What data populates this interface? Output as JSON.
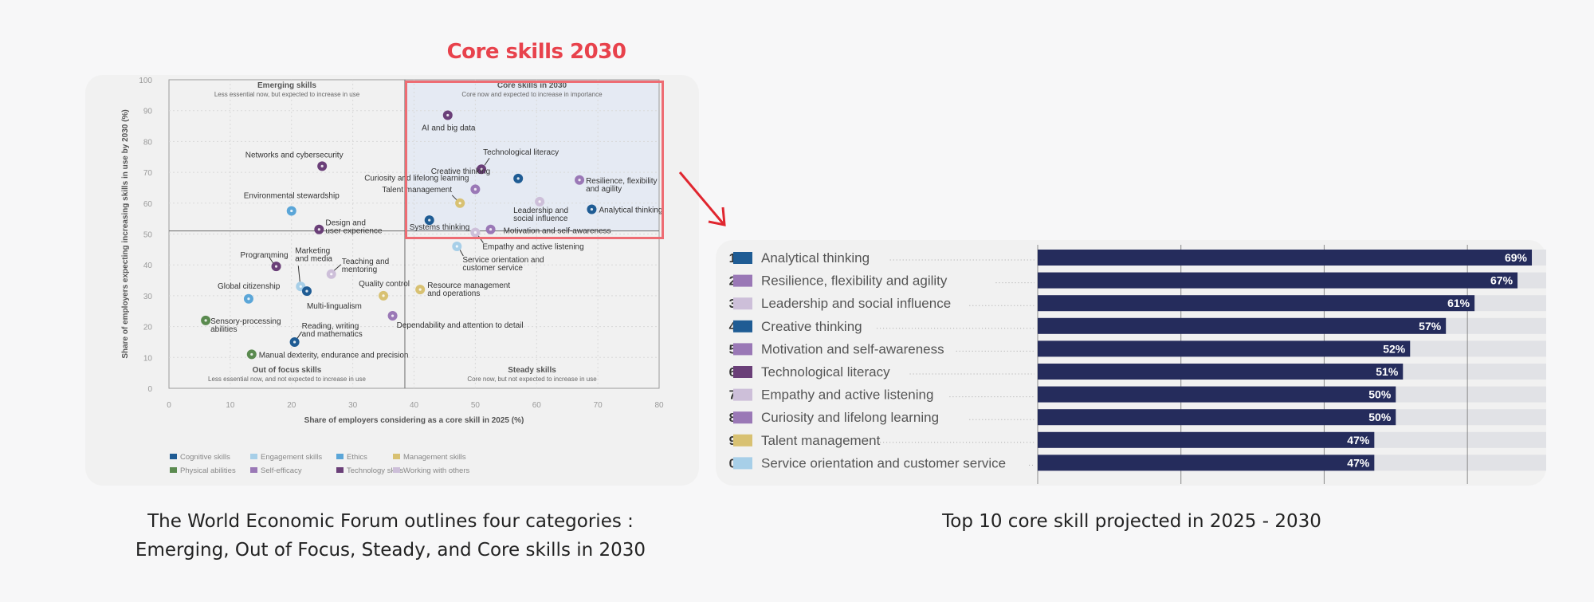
{
  "highlight_title": "Core skills 2030",
  "captions": {
    "left_line1": "The World Economic Forum outlines four categories :",
    "left_line2": "Emerging, Out of Focus, Steady, and Core skills in 2030",
    "right": "Top 10 core skill projected in 2025 - 2030"
  },
  "colors": {
    "accent_red": "#e8424c",
    "bar_fill": "#252c5c",
    "bar_track": "#e1e2e6",
    "categories": {
      "Cognitive skills": "#1f5c94",
      "Engagement skills": "#a7cfe8",
      "Ethics": "#5ba6d8",
      "Management skills": "#d8c172",
      "Physical abilities": "#5a8a4f",
      "Self-efficacy": "#9a78b6",
      "Technology skills": "#6a3f78",
      "Working with others": "#cdbfd9"
    }
  },
  "chart_data": [
    {
      "type": "scatter",
      "xlabel": "Share of employers considering as a core skill in 2025 (%)",
      "ylabel": "Share of employers expecting increasing skills in use by 2030 (%)",
      "xlim": [
        0,
        80
      ],
      "ylim": [
        0,
        100
      ],
      "xticks": [
        "0",
        "10",
        "20",
        "30",
        "40",
        "50",
        "60",
        "70",
        "80"
      ],
      "yticks": [
        "0",
        "10",
        "20",
        "30",
        "40",
        "50",
        "60",
        "70",
        "80",
        "90",
        "100"
      ],
      "grid": true,
      "divider": {
        "x": 38.5,
        "y": 51
      },
      "quadrants": [
        {
          "title": "Emerging skills",
          "subtitle": "Less essential now, but expected to increase in use"
        },
        {
          "title": "Core skills in 2030",
          "subtitle": "Core now and expected to increase in importance"
        },
        {
          "title": "Out of focus skills",
          "subtitle": "Less essential now, and not expected to increase in use"
        },
        {
          "title": "Steady skills",
          "subtitle": "Core now, but not expected to increase in use"
        }
      ],
      "points": [
        {
          "label": "AI and big data",
          "x": 45.5,
          "y": 88.5,
          "category": "Technology skills"
        },
        {
          "label": "Technological literacy",
          "x": 51,
          "y": 71,
          "category": "Technology skills"
        },
        {
          "label": "Creative thinking",
          "x": 57,
          "y": 68,
          "category": "Cognitive skills"
        },
        {
          "label": "Resilience, flexibility and agility",
          "x": 67,
          "y": 67.5,
          "category": "Self-efficacy"
        },
        {
          "label": "Curiosity and lifelong learning",
          "x": 50,
          "y": 64.5,
          "category": "Self-efficacy"
        },
        {
          "label": "Talent management",
          "x": 47.5,
          "y": 60,
          "category": "Management skills"
        },
        {
          "label": "Leadership and social influence",
          "x": 60.5,
          "y": 60.5,
          "category": "Working with others"
        },
        {
          "label": "Analytical thinking",
          "x": 69,
          "y": 58,
          "category": "Cognitive skills"
        },
        {
          "label": "Systems thinking",
          "x": 42.5,
          "y": 54.5,
          "category": "Cognitive skills"
        },
        {
          "label": "Motivation and self-awareness",
          "x": 52.5,
          "y": 51.5,
          "category": "Self-efficacy"
        },
        {
          "label": "Empathy and active listening",
          "x": 50,
          "y": 50.5,
          "category": "Working with others"
        },
        {
          "label": "Service orientation and customer service",
          "x": 47,
          "y": 46,
          "category": "Engagement skills"
        },
        {
          "label": "Networks and cybersecurity",
          "x": 25,
          "y": 72,
          "category": "Technology skills"
        },
        {
          "label": "Environmental stewardship",
          "x": 20,
          "y": 57.5,
          "category": "Ethics"
        },
        {
          "label": "Design and user experience",
          "x": 24.5,
          "y": 51.5,
          "category": "Technology skills"
        },
        {
          "label": "Programming",
          "x": 17.5,
          "y": 39.5,
          "category": "Technology skills"
        },
        {
          "label": "Marketing and media",
          "x": 21.5,
          "y": 33,
          "category": "Engagement skills"
        },
        {
          "label": "Teaching and mentoring",
          "x": 26.5,
          "y": 37,
          "category": "Working with others"
        },
        {
          "label": "Global citizenship",
          "x": 13,
          "y": 29,
          "category": "Ethics"
        },
        {
          "label": "Multi-lingualism",
          "x": 22.5,
          "y": 31.5,
          "category": "Cognitive skills"
        },
        {
          "label": "Quality control",
          "x": 35,
          "y": 30,
          "category": "Management skills"
        },
        {
          "label": "Resource management and operations",
          "x": 41,
          "y": 32,
          "category": "Management skills"
        },
        {
          "label": "Sensory-processing abilities",
          "x": 6,
          "y": 22,
          "category": "Physical abilities"
        },
        {
          "label": "Dependability and attention to detail",
          "x": 36.5,
          "y": 23.5,
          "category": "Self-efficacy"
        },
        {
          "label": "Reading, writing and mathematics",
          "x": 20.5,
          "y": 15,
          "category": "Cognitive skills"
        },
        {
          "label": "Manual dexterity, endurance and precision",
          "x": 13.5,
          "y": 11,
          "category": "Physical abilities"
        }
      ],
      "legend_position": "bottom",
      "legend": [
        "Cognitive skills",
        "Engagement skills",
        "Ethics",
        "Management skills",
        "Physical abilities",
        "Self-efficacy",
        "Technology skills",
        "Working with others"
      ]
    },
    {
      "type": "bar",
      "orientation": "horizontal",
      "xlim": [
        0,
        71
      ],
      "gridlines": [
        0,
        20,
        40,
        60
      ],
      "categories": [
        {
          "rank": "1.",
          "label": "Analytical thinking",
          "value": 69,
          "value_label": "69%",
          "category": "Cognitive skills"
        },
        {
          "rank": "2.",
          "label": "Resilience, flexibility and agility",
          "value": 67,
          "value_label": "67%",
          "category": "Self-efficacy"
        },
        {
          "rank": "3.",
          "label": "Leadership and social influence",
          "value": 61,
          "value_label": "61%",
          "category": "Working with others"
        },
        {
          "rank": "4.",
          "label": "Creative thinking",
          "value": 57,
          "value_label": "57%",
          "category": "Cognitive skills"
        },
        {
          "rank": "5.",
          "label": "Motivation and self-awareness",
          "value": 52,
          "value_label": "52%",
          "category": "Self-efficacy"
        },
        {
          "rank": "6.",
          "label": "Technological literacy",
          "value": 51,
          "value_label": "51%",
          "category": "Technology skills"
        },
        {
          "rank": "7.",
          "label": "Empathy and active listening",
          "value": 50,
          "value_label": "50%",
          "category": "Working with others"
        },
        {
          "rank": "8.",
          "label": "Curiosity and lifelong learning",
          "value": 50,
          "value_label": "50%",
          "category": "Self-efficacy"
        },
        {
          "rank": "9.",
          "label": "Talent management",
          "value": 47,
          "value_label": "47%",
          "category": "Management skills"
        },
        {
          "rank": "0.",
          "label": "Service orientation and customer service",
          "value": 47,
          "value_label": "47%",
          "category": "Engagement skills"
        }
      ]
    }
  ]
}
